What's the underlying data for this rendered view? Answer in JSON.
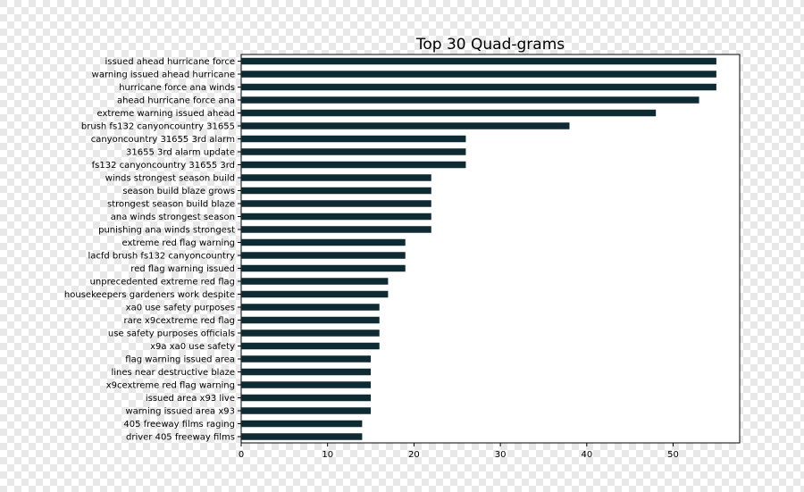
{
  "colors": {
    "bar": "#0e2b33",
    "axis": "#000000",
    "checker_light": "#ffffff",
    "checker_dark": "#e8e8e8"
  },
  "chart_data": {
    "type": "bar",
    "orientation": "horizontal",
    "title": "Top 30 Quad-grams",
    "xlabel": "",
    "ylabel": "",
    "xlim": [
      0,
      57.7
    ],
    "xticks": [
      0,
      10,
      20,
      30,
      40,
      50
    ],
    "grid": false,
    "categories": [
      "issued ahead hurricane force",
      "warning issued ahead hurricane",
      "hurricane force ana winds",
      "ahead hurricane force ana",
      "extreme warning issued ahead",
      "brush fs132 canyoncountry 31655",
      "canyoncountry 31655 3rd alarm",
      "31655 3rd alarm update",
      "fs132 canyoncountry 31655 3rd",
      "winds strongest season build",
      "season build blaze grows",
      "strongest season build blaze",
      "ana winds strongest season",
      "punishing ana winds strongest",
      "extreme red flag warning",
      "lacfd brush fs132 canyoncountry",
      "red flag warning issued",
      "unprecedented extreme red flag",
      "housekeepers gardeners work despite",
      "xa0 use safety purposes",
      "rare x9cextreme red flag",
      "use safety purposes officials",
      "x9a xa0 use safety",
      "flag warning issued area",
      "lines near destructive blaze",
      "x9cextreme red flag warning",
      "issued area x93 live",
      "warning issued area x93",
      "405 freeway films raging",
      "driver 405 freeway films"
    ],
    "values": [
      55,
      55,
      55,
      53,
      48,
      38,
      26,
      26,
      26,
      22,
      22,
      22,
      22,
      22,
      19,
      19,
      19,
      17,
      17,
      16,
      16,
      16,
      16,
      15,
      15,
      15,
      15,
      15,
      14,
      14
    ]
  }
}
